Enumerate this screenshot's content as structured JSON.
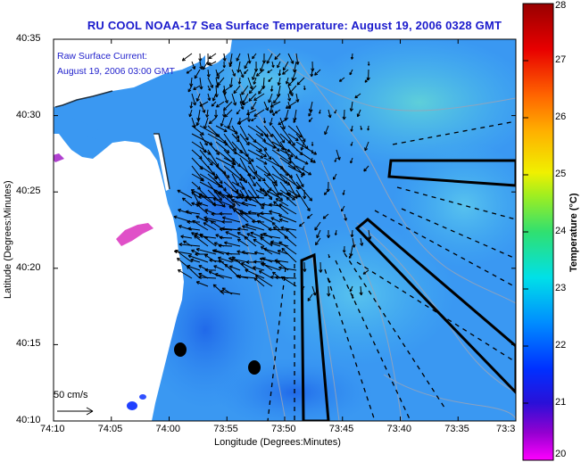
{
  "title": "RU COOL  NOAA-17  Sea Surface Temperature:  August 19, 2006 0328 GMT",
  "legend": {
    "line1": "Raw Surface Current:",
    "line2": "August 19, 2006 03:00 GMT"
  },
  "axes": {
    "xlabel": "Longitude (Degrees:Minutes)",
    "ylabel": "Latitude (Degrees:Minutes)",
    "x_ticks": [
      "74:10",
      "74:05",
      "74:00",
      "73:55",
      "73:50",
      "73:45",
      "73:40",
      "73:35",
      "73:3"
    ],
    "y_ticks": [
      "40:35",
      "40:30",
      "40:25",
      "40:20",
      "40:15",
      "40:10"
    ]
  },
  "colorbar": {
    "title": "Temperature (°C)",
    "ticks": [
      "28",
      "27",
      "26",
      "25",
      "24",
      "23",
      "22",
      "21",
      "20"
    ],
    "min": 20,
    "max": 28
  },
  "scale_vector": {
    "label": "50 cm/s"
  },
  "colors": {
    "title": "#1a1acc",
    "land": "#ffffff",
    "water_main": "#2f8cf2",
    "water_warm": "#49c6f0"
  }
}
